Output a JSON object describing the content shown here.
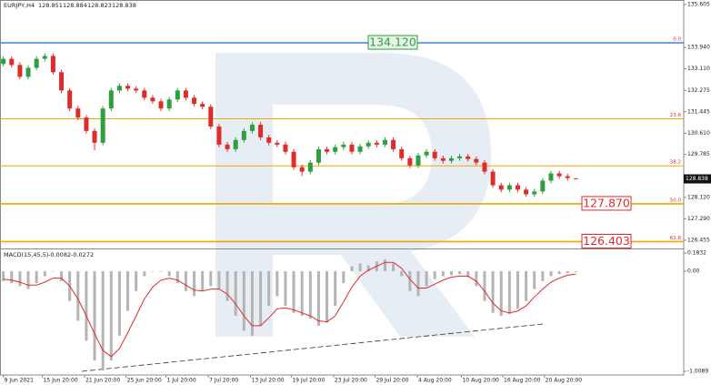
{
  "chart_data": [
    {
      "type": "candlestick",
      "symbol": "EURJPY,H4",
      "up_color": "#2e9e3e",
      "down_color": "#e02b2b",
      "open": [
        133.3,
        133.5,
        133.26,
        132.8,
        133.15,
        133.5,
        133.61,
        132.98,
        132.27,
        131.57,
        131.22,
        130.7,
        130.24,
        131.57,
        132.27,
        132.45,
        132.34,
        132.27,
        131.99,
        131.85,
        131.57,
        131.92,
        132.27,
        131.99,
        131.75,
        131.64,
        130.87,
        130.17,
        129.99,
        130.35,
        130.7,
        130.94,
        130.45,
        130.24,
        130.17,
        129.89,
        129.29,
        129.12,
        129.47,
        129.99,
        129.89,
        130.07,
        130.17,
        129.89,
        130.1,
        130.24,
        130.17,
        130.35,
        129.99,
        129.64,
        129.36,
        129.75,
        129.89,
        129.64,
        129.54,
        129.64,
        129.71,
        129.61,
        129.47,
        129.12,
        128.59,
        128.42,
        128.59,
        128.42,
        128.24,
        128.35,
        128.77,
        129.05,
        128.94,
        128.851
      ],
      "high": [
        133.6,
        133.6,
        133.36,
        133.25,
        133.6,
        133.71,
        133.71,
        133.08,
        132.37,
        131.67,
        131.32,
        130.8,
        131.67,
        132.37,
        132.55,
        132.55,
        132.44,
        132.37,
        132.09,
        131.95,
        132.02,
        132.37,
        132.37,
        132.09,
        131.85,
        131.74,
        130.97,
        130.27,
        130.45,
        130.8,
        131.04,
        131.04,
        130.55,
        130.34,
        130.27,
        129.99,
        129.39,
        129.57,
        130.09,
        130.09,
        130.17,
        130.27,
        130.27,
        130.2,
        130.34,
        130.34,
        130.45,
        130.45,
        130.09,
        129.74,
        129.85,
        129.99,
        129.99,
        129.74,
        129.74,
        129.81,
        129.81,
        129.71,
        129.57,
        129.22,
        128.69,
        128.69,
        128.69,
        128.52,
        128.45,
        128.87,
        129.15,
        129.15,
        129.04,
        128.884
      ],
      "low": [
        133.2,
        133.16,
        132.7,
        132.7,
        133.05,
        133.4,
        132.88,
        132.17,
        131.47,
        131.12,
        130.6,
        129.95,
        130.14,
        131.47,
        132.17,
        132.24,
        132.17,
        131.89,
        131.75,
        131.47,
        131.47,
        131.82,
        131.89,
        131.65,
        131.54,
        130.77,
        130.07,
        129.89,
        129.89,
        130.25,
        130.6,
        130.35,
        130.14,
        130.07,
        129.79,
        129.19,
        128.95,
        129.02,
        129.37,
        129.79,
        129.79,
        129.97,
        129.79,
        129.79,
        130.0,
        130.07,
        130.07,
        129.89,
        129.54,
        129.26,
        129.26,
        129.65,
        129.54,
        129.44,
        129.44,
        129.54,
        129.51,
        129.37,
        129.02,
        128.49,
        128.32,
        128.32,
        128.32,
        128.14,
        128.14,
        128.25,
        128.67,
        128.84,
        128.77,
        128.823
      ],
      "close": [
        133.5,
        133.26,
        132.8,
        133.15,
        133.5,
        133.61,
        132.98,
        132.27,
        131.57,
        131.22,
        130.7,
        130.24,
        131.57,
        132.27,
        132.45,
        132.34,
        132.27,
        131.99,
        131.85,
        131.57,
        131.92,
        132.27,
        131.99,
        131.75,
        131.64,
        130.87,
        130.17,
        129.99,
        130.35,
        130.7,
        130.94,
        130.45,
        130.24,
        130.17,
        129.89,
        129.29,
        129.12,
        129.47,
        129.99,
        129.89,
        130.07,
        130.17,
        129.89,
        130.1,
        130.24,
        130.17,
        130.35,
        129.99,
        129.64,
        129.36,
        129.75,
        129.89,
        129.64,
        129.54,
        129.64,
        129.71,
        129.61,
        129.47,
        129.12,
        128.59,
        128.42,
        128.59,
        128.42,
        128.24,
        128.35,
        128.77,
        129.05,
        128.94,
        128.87,
        128.838
      ],
      "ylim": [
        126.172,
        135.782
      ],
      "yticks": [
        135.605,
        {
          "value": 133.94,
          "label": "133.940"
        },
        {
          "value": 133.11,
          "label": "133.110"
        },
        132.275,
        131.445,
        {
          "value": 130.61,
          "label": "130.610"
        },
        129.785,
        {
          "value": 128.12,
          "label": "128.120"
        },
        {
          "value": 127.29,
          "label": "127.290"
        },
        126.455
      ],
      "xlim": [
        -0.4,
        82
      ],
      "xticks": [
        {
          "value": 0,
          "label": "9 Jun 2021"
        },
        {
          "value": 4.7,
          "label": "15 Jun 20:00"
        },
        {
          "value": 9.8,
          "label": "21 Jun 20:00"
        },
        {
          "value": 14.8,
          "label": "25 Jun 20:00"
        },
        {
          "value": 19.6,
          "label": "1 Jul 20:00"
        },
        {
          "value": 24.7,
          "label": "7 Jul 20:00"
        },
        {
          "value": 29.8,
          "label": "13 Jul 20:00"
        },
        {
          "value": 34.7,
          "label": "19 Jul 20:00"
        },
        {
          "value": 39.8,
          "label": "23 Jul 20:00"
        },
        {
          "value": 44.8,
          "label": "29 Jul 20:00"
        },
        {
          "value": 49.9,
          "label": "4 Aug 20:00"
        },
        {
          "value": 55.2,
          "label": "10 Aug 20:00"
        },
        {
          "value": 60.2,
          "label": "16 Aug 20:00"
        },
        {
          "value": 65.2,
          "label": "20 Aug 20:00"
        }
      ],
      "levels": [
        {
          "name": "0.0",
          "value": 134.12,
          "label": "134.120",
          "color": "#4a8fd8",
          "box_color": "#2e9e3e"
        },
        {
          "name": "23.6",
          "value": 131.17,
          "color": "#f0a500"
        },
        {
          "name": "38.2",
          "value": 129.345,
          "color": "#f0a500"
        },
        {
          "name": "50.0",
          "value": 127.87,
          "label": "127.870",
          "color": "#f0a500",
          "box_color": "#e02b2b"
        },
        {
          "name": "61.8",
          "value": 126.403,
          "label": "126.403",
          "color": "#f0a500",
          "box_color": "#e02b2b"
        }
      ]
    },
    {
      "type": "macd",
      "label": "MACD(15,45,5)",
      "hist_color": "#b4b4b4",
      "signal_color": "#e02b2b",
      "histogram": [
        -0.1,
        -0.12,
        -0.15,
        -0.18,
        -0.12,
        -0.05,
        0.0,
        -0.1,
        -0.3,
        -0.5,
        -0.7,
        -0.9,
        -1.0,
        -0.9,
        -0.65,
        -0.4,
        -0.2,
        -0.05,
        0.0,
        0.0,
        -0.05,
        -0.12,
        -0.2,
        -0.25,
        -0.2,
        -0.15,
        -0.18,
        -0.3,
        -0.45,
        -0.6,
        -0.65,
        -0.55,
        -0.35,
        -0.25,
        -0.35,
        -0.42,
        -0.45,
        -0.48,
        -0.55,
        -0.52,
        -0.35,
        -0.12,
        0.05,
        0.08,
        0.06,
        0.1,
        0.12,
        0.08,
        -0.05,
        -0.2,
        -0.25,
        -0.15,
        -0.08,
        -0.05,
        -0.04,
        -0.03,
        -0.06,
        -0.15,
        -0.3,
        -0.42,
        -0.45,
        -0.43,
        -0.38,
        -0.3,
        -0.18,
        -0.1,
        -0.05,
        -0.03,
        -0.02,
        -0.0082
      ],
      "signal": [
        -0.08,
        -0.09,
        -0.11,
        -0.14,
        -0.14,
        -0.11,
        -0.07,
        -0.07,
        -0.15,
        -0.28,
        -0.45,
        -0.63,
        -0.8,
        -0.86,
        -0.78,
        -0.62,
        -0.45,
        -0.28,
        -0.16,
        -0.09,
        -0.07,
        -0.09,
        -0.14,
        -0.19,
        -0.2,
        -0.18,
        -0.18,
        -0.23,
        -0.33,
        -0.45,
        -0.55,
        -0.55,
        -0.47,
        -0.38,
        -0.37,
        -0.39,
        -0.42,
        -0.45,
        -0.5,
        -0.51,
        -0.45,
        -0.31,
        -0.16,
        -0.05,
        0.01,
        0.05,
        0.09,
        0.09,
        0.03,
        -0.08,
        -0.17,
        -0.17,
        -0.13,
        -0.09,
        -0.06,
        -0.05,
        -0.05,
        -0.1,
        -0.2,
        -0.32,
        -0.4,
        -0.42,
        -0.4,
        -0.35,
        -0.26,
        -0.18,
        -0.11,
        -0.07,
        -0.04,
        -0.0272
      ],
      "ylim": [
        -1.046,
        0.211
      ],
      "yticks": [
        0.1832,
        {
          "value": 0,
          "label": "0.00"
        },
        -1.0089
      ]
    }
  ]
}
